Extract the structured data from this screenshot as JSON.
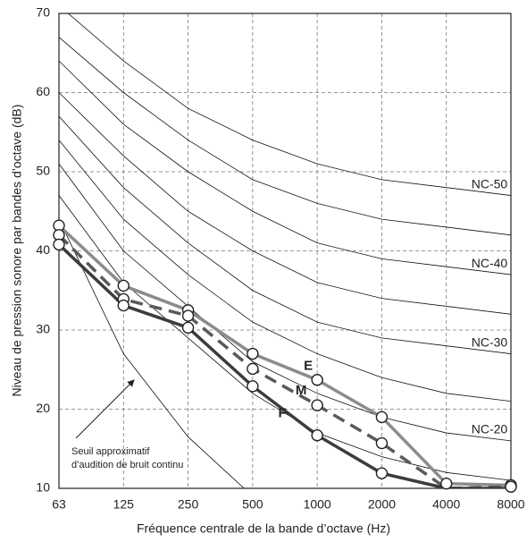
{
  "chart_data": {
    "type": "line",
    "x_label": "Fréquence centrale de la bande d’octave (Hz)",
    "y_label": "Niveau de pression sonore par bandes d’octave (dB)",
    "categories": [
      "63",
      "125",
      "250",
      "500",
      "1000",
      "2000",
      "4000",
      "8000"
    ],
    "ylim": [
      10,
      70
    ],
    "yticks": [
      10,
      20,
      30,
      40,
      50,
      60,
      70
    ],
    "grid": true,
    "series": [
      {
        "name": "E",
        "color": "#8c8c8c",
        "values": [
          43.2,
          35.6,
          32.5,
          27,
          23.7,
          19,
          10.6,
          10.4
        ]
      },
      {
        "name": "M",
        "color": "#5a5a5a",
        "dashed": true,
        "values": [
          42,
          33.9,
          31.8,
          25.1,
          20.5,
          15.7,
          10,
          10.2
        ]
      },
      {
        "name": "F",
        "color": "#3c3c3c",
        "values": [
          40.8,
          33.1,
          30.3,
          22.9,
          16.7,
          11.9,
          10,
          10
        ]
      }
    ],
    "nc_curves": [
      {
        "values": [
          47,
          36,
          29,
          22,
          17,
          14,
          12,
          11
        ]
      },
      {
        "name": "NC-20",
        "values": [
          51,
          40,
          33,
          26,
          22,
          19,
          17,
          16
        ]
      },
      {
        "values": [
          54,
          44,
          37,
          31,
          27,
          24,
          22,
          21
        ]
      },
      {
        "name": "NC-30",
        "values": [
          57,
          48,
          41,
          35,
          31,
          29,
          28,
          27
        ]
      },
      {
        "values": [
          60,
          52,
          45,
          40,
          36,
          34,
          33,
          32
        ]
      },
      {
        "name": "NC-40",
        "values": [
          64,
          56,
          50,
          45,
          41,
          39,
          38,
          37
        ]
      },
      {
        "values": [
          67,
          60,
          54,
          49,
          46,
          44,
          43,
          42
        ]
      },
      {
        "name": "NC-50",
        "values": [
          71,
          64,
          58,
          54,
          51,
          49,
          48,
          47
        ]
      }
    ],
    "threshold": {
      "lines": [
        "Seuil approximatif",
        "d’audition de bruit continu"
      ],
      "values": [
        44,
        27,
        16.5,
        9,
        null,
        null,
        null,
        null
      ]
    }
  }
}
